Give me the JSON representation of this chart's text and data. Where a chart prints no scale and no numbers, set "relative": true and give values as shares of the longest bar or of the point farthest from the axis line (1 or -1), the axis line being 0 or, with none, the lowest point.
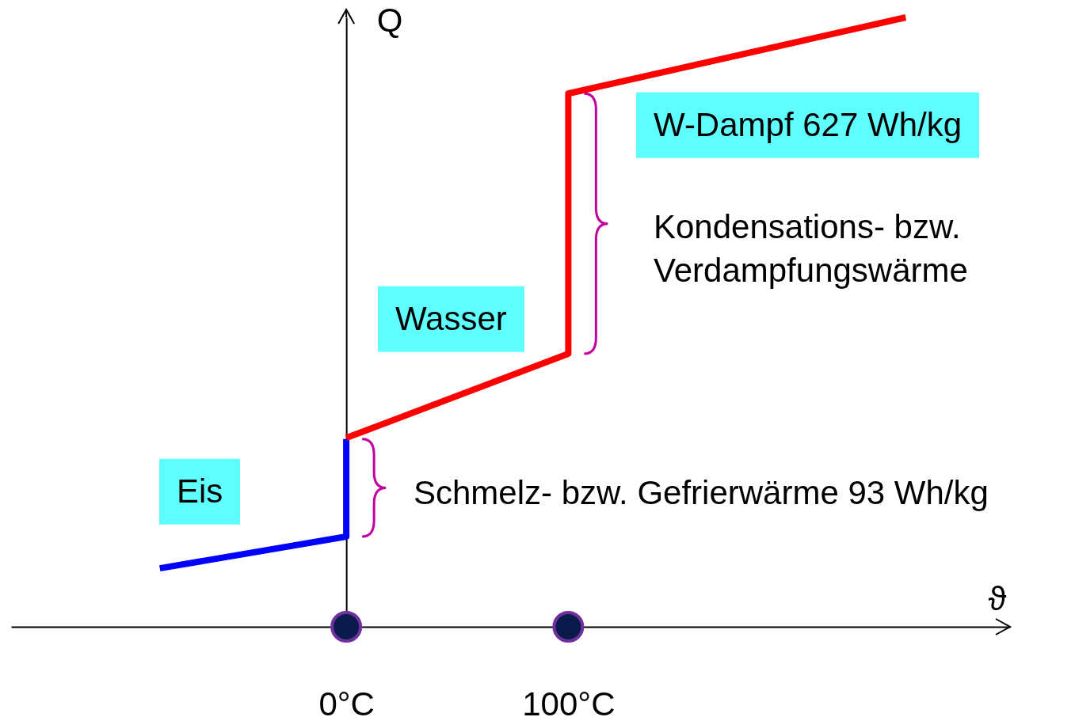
{
  "chart_data": {
    "type": "line",
    "relative": true,
    "ylabel": "Q",
    "xlabel": "ϑ",
    "xlim": [
      -151,
      299
    ],
    "xticks": [
      {
        "value": 0,
        "label": "0°C"
      },
      {
        "value": 100,
        "label": "100°C"
      }
    ],
    "series": [
      {
        "color": "#0000ff",
        "x": [
          -84,
          0,
          0
        ],
        "values": [
          0.096,
          0.148,
          0.308
        ]
      },
      {
        "color": "#ff0000",
        "x": [
          0,
          100,
          100,
          252
        ],
        "values": [
          0.31,
          0.448,
          0.875,
          1
        ]
      }
    ],
    "marker": "none",
    "line_style": "solid",
    "annotations": [
      "Eis",
      "Wasser",
      "W-Dampf 627 Wh/kg",
      "Kondensations- bzw.\nVerdampfungswärme",
      "Schmelz- bzw. Gefrierwärme 93 Wh/kg"
    ]
  }
}
